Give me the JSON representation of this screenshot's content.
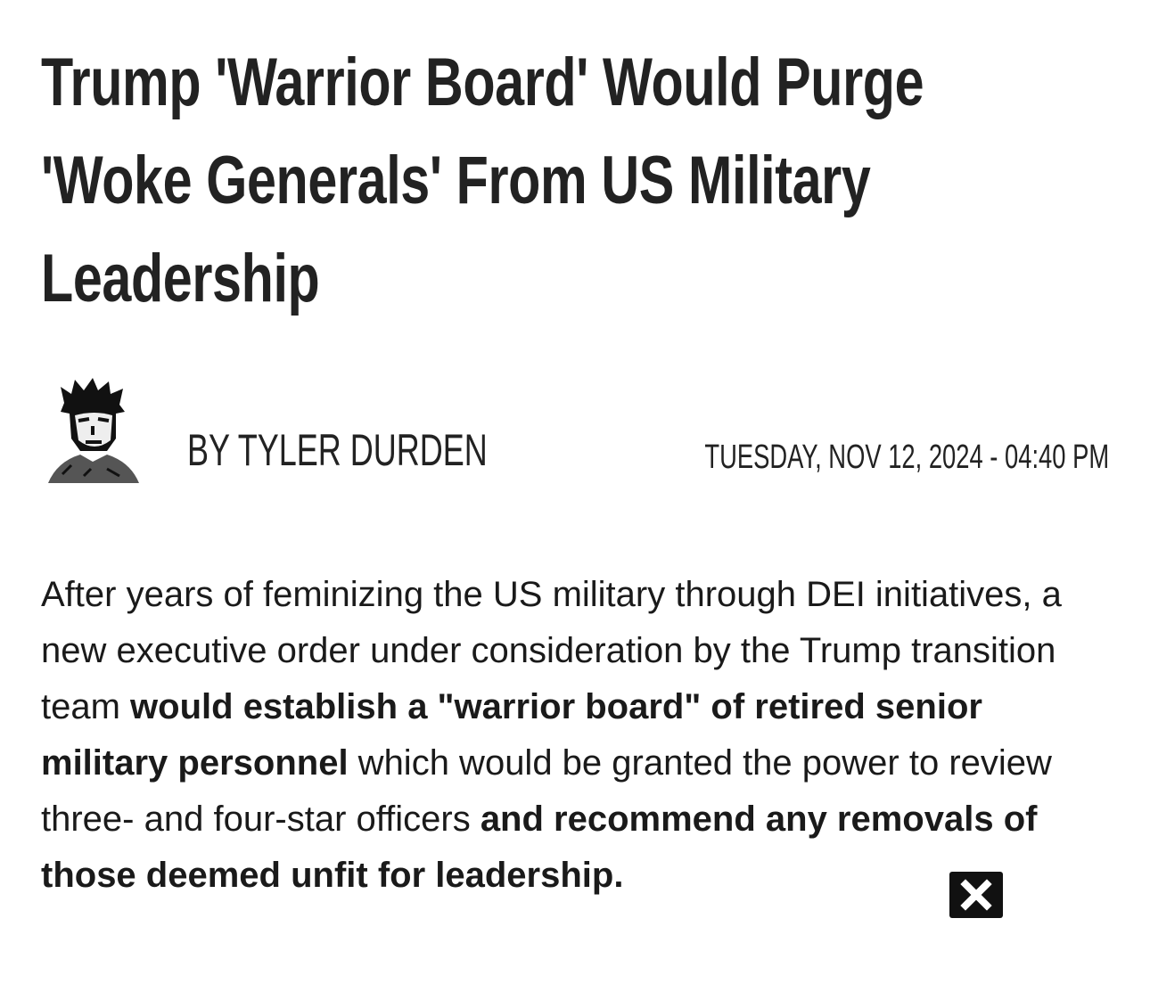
{
  "article": {
    "title": "Trump 'Warrior Board' Would Purge 'Woke Generals' From US Military Leadership",
    "byline": "BY TYLER DURDEN",
    "date": "TUESDAY, NOV 12, 2024 - 04:40 PM",
    "body": [
      {
        "text": "After years of feminizing the US military through DEI initiatives, a new executive order under consideration by the Trump transition team ",
        "bold": false
      },
      {
        "text": "would establish a \"warrior board\" of retired senior military personnel",
        "bold": true
      },
      {
        "text": " which would be granted the power to review three- and four-star officers ",
        "bold": false
      },
      {
        "text": "and recommend any removals of those deemed unfit for leadership.",
        "bold": true
      }
    ]
  }
}
